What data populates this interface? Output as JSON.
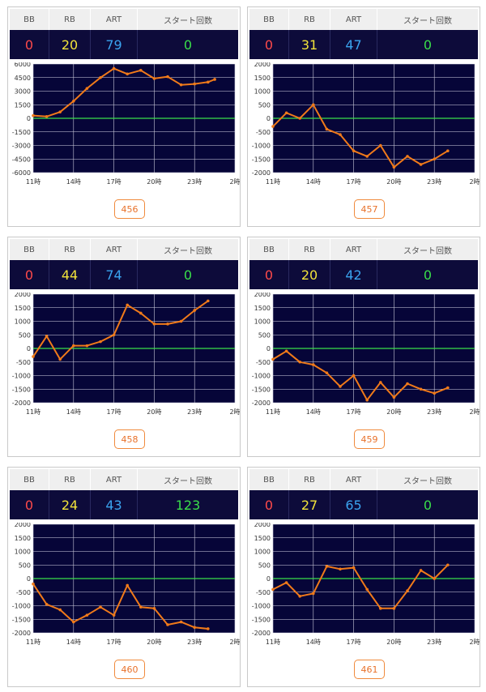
{
  "headers": {
    "bb": "BB",
    "rb": "RB",
    "art": "ART",
    "start": "スタート回数"
  },
  "colors": {
    "bb": "#ff4a4a",
    "rb": "#f2e33a",
    "art": "#3aa4f0",
    "start": "#3adf4a",
    "line": "#f07a1a",
    "zero": "#3adf4a",
    "plot_bg": "#060538"
  },
  "machines": [
    {
      "number": "456",
      "bb": "0",
      "rb": "20",
      "art": "79",
      "start": "0"
    },
    {
      "number": "457",
      "bb": "0",
      "rb": "31",
      "art": "47",
      "start": "0"
    },
    {
      "number": "458",
      "bb": "0",
      "rb": "44",
      "art": "74",
      "start": "0"
    },
    {
      "number": "459",
      "bb": "0",
      "rb": "20",
      "art": "42",
      "start": "0"
    },
    {
      "number": "460",
      "bb": "0",
      "rb": "24",
      "art": "43",
      "start": "123"
    },
    {
      "number": "461",
      "bb": "0",
      "rb": "27",
      "art": "65",
      "start": "0"
    }
  ],
  "chart_data": [
    {
      "type": "line",
      "xlabels": [
        "11時",
        "14時",
        "17時",
        "20時",
        "23時",
        "2時"
      ],
      "xlim": [
        11,
        26
      ],
      "ylim": [
        -6000,
        6000
      ],
      "yticks": [
        6000,
        4500,
        3000,
        1500,
        0,
        -1500,
        -3000,
        -4500,
        -6000
      ],
      "x": [
        11,
        12,
        13,
        14,
        15,
        16,
        17,
        18,
        19,
        20,
        21,
        22,
        23,
        24,
        24.5
      ],
      "values": [
        300,
        200,
        700,
        1900,
        3300,
        4500,
        5500,
        4900,
        5300,
        4400,
        4600,
        3700,
        3800,
        4000,
        4300
      ]
    },
    {
      "type": "line",
      "xlabels": [
        "11時",
        "14時",
        "17時",
        "20時",
        "23時",
        "2時"
      ],
      "xlim": [
        11,
        26
      ],
      "ylim": [
        -2000,
        2000
      ],
      "yticks": [
        2000,
        1500,
        1000,
        500,
        0,
        -500,
        -1000,
        -1500,
        -2000
      ],
      "x": [
        11,
        12,
        13,
        14,
        15,
        16,
        17,
        18,
        19,
        20,
        21,
        22,
        23,
        24
      ],
      "values": [
        -300,
        200,
        0,
        500,
        -400,
        -600,
        -1200,
        -1400,
        -1000,
        -1800,
        -1400,
        -1700,
        -1500,
        -1200
      ]
    },
    {
      "type": "line",
      "xlabels": [
        "11時",
        "14時",
        "17時",
        "20時",
        "23時",
        "2時"
      ],
      "xlim": [
        11,
        26
      ],
      "ylim": [
        -2000,
        2000
      ],
      "yticks": [
        2000,
        1500,
        1000,
        500,
        0,
        -500,
        -1000,
        -1500,
        -2000
      ],
      "x": [
        11,
        12,
        13,
        14,
        15,
        16,
        17,
        18,
        19,
        20,
        21,
        22,
        23,
        24
      ],
      "values": [
        -300,
        450,
        -400,
        100,
        100,
        250,
        500,
        1600,
        1300,
        900,
        900,
        1000,
        1400,
        1750
      ]
    },
    {
      "type": "line",
      "xlabels": [
        "11時",
        "14時",
        "17時",
        "20時",
        "23時",
        "2時"
      ],
      "xlim": [
        11,
        26
      ],
      "ylim": [
        -2000,
        2000
      ],
      "yticks": [
        2000,
        1500,
        1000,
        500,
        0,
        -500,
        -1000,
        -1500,
        -2000
      ],
      "x": [
        11,
        12,
        13,
        14,
        15,
        16,
        17,
        18,
        19,
        20,
        21,
        22,
        23,
        24
      ],
      "values": [
        -400,
        -100,
        -500,
        -600,
        -900,
        -1400,
        -1000,
        -1900,
        -1250,
        -1800,
        -1300,
        -1500,
        -1650,
        -1450
      ]
    },
    {
      "type": "line",
      "xlabels": [
        "11時",
        "14時",
        "17時",
        "20時",
        "23時",
        "2時"
      ],
      "xlim": [
        11,
        26
      ],
      "ylim": [
        -2000,
        2000
      ],
      "yticks": [
        2000,
        1500,
        1000,
        500,
        0,
        -500,
        -1000,
        -1500,
        -2000
      ],
      "x": [
        11,
        12,
        13,
        14,
        15,
        16,
        17,
        18,
        19,
        20,
        21,
        22,
        23,
        24
      ],
      "values": [
        -200,
        -950,
        -1150,
        -1600,
        -1350,
        -1050,
        -1350,
        -250,
        -1050,
        -1100,
        -1700,
        -1600,
        -1800,
        -1850
      ]
    },
    {
      "type": "line",
      "xlabels": [
        "11時",
        "14時",
        "17時",
        "20時",
        "23時",
        "2時"
      ],
      "xlim": [
        11,
        26
      ],
      "ylim": [
        -2000,
        2000
      ],
      "yticks": [
        2000,
        1500,
        1000,
        500,
        0,
        -500,
        -1000,
        -1500,
        -2000
      ],
      "x": [
        11,
        12,
        13,
        14,
        15,
        16,
        17,
        18,
        19,
        20,
        21,
        22,
        23,
        24
      ],
      "values": [
        -400,
        -150,
        -650,
        -550,
        450,
        350,
        400,
        -400,
        -1100,
        -1100,
        -450,
        300,
        0,
        500
      ]
    }
  ]
}
